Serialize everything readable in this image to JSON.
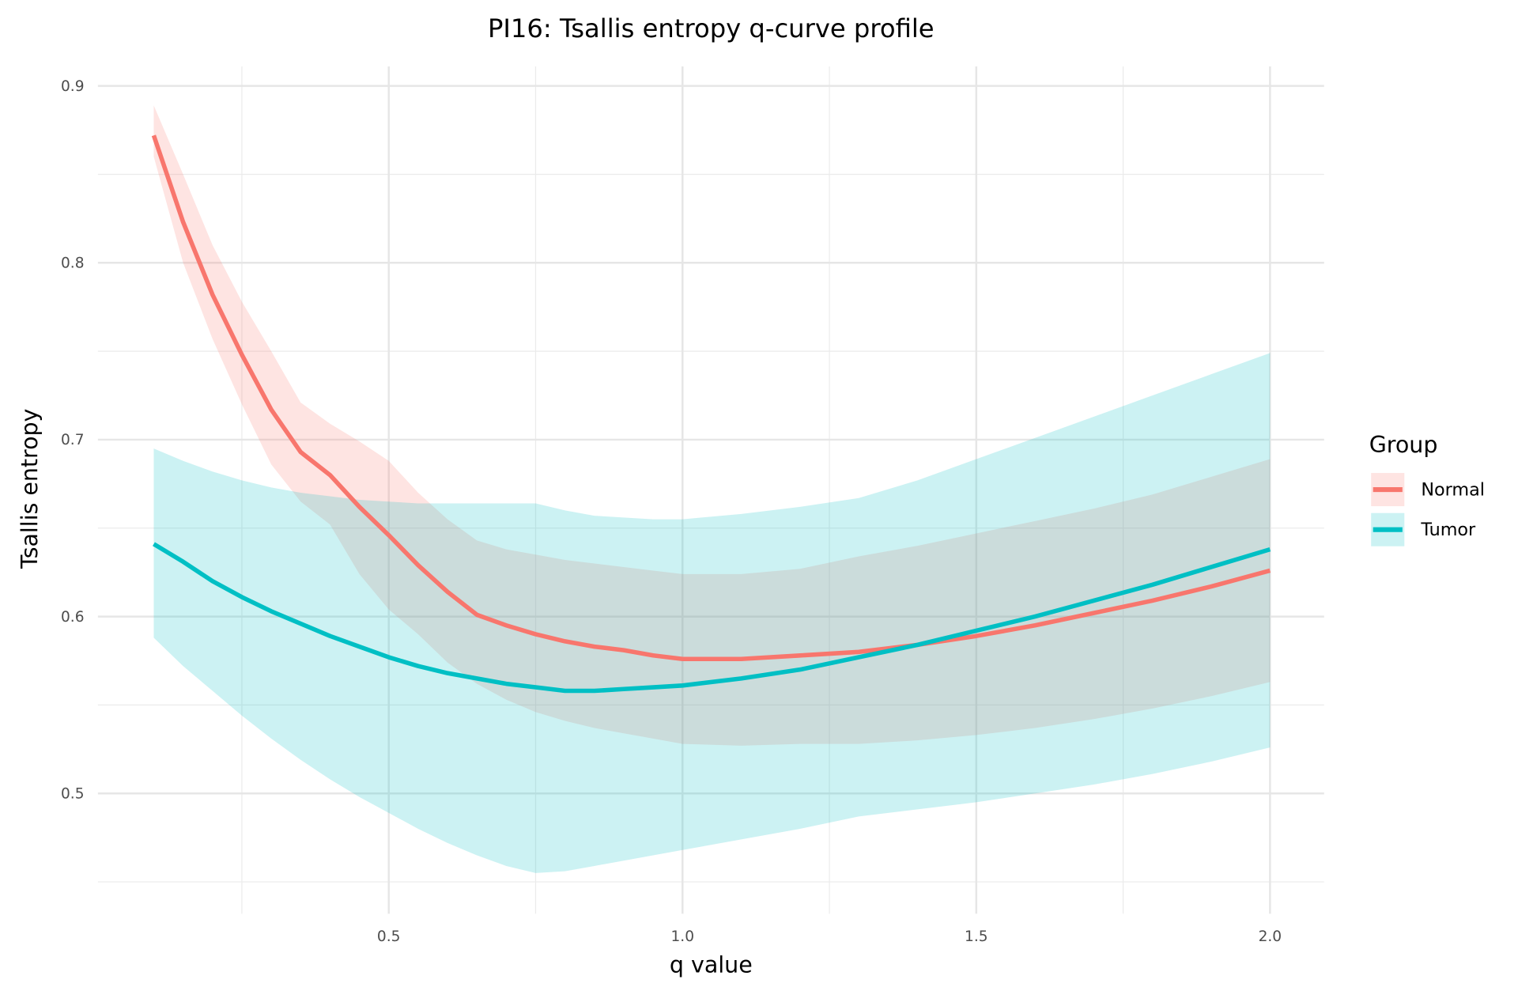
{
  "chart_data": {
    "type": "line",
    "title": "PI16: Tsallis entropy q-curve profile",
    "xlabel": "q value",
    "ylabel": "Tsallis entropy",
    "xlim": [
      0.005,
      2.092
    ],
    "ylim": [
      0.432,
      0.911
    ],
    "xticks": [
      0.5,
      1.0,
      1.5,
      2.0
    ],
    "xtick_labels": [
      "0.5",
      "1.0",
      "1.5",
      "2.0"
    ],
    "yticks": [
      0.5,
      0.6,
      0.7,
      0.8,
      0.9
    ],
    "ytick_labels": [
      "0.5",
      "0.6",
      "0.7",
      "0.8",
      "0.9"
    ],
    "grid": true,
    "legend": {
      "title": "Group",
      "placement": "right"
    },
    "x": [
      0.1,
      0.15,
      0.2,
      0.25,
      0.3,
      0.35,
      0.4,
      0.45,
      0.5,
      0.55,
      0.6,
      0.65,
      0.7,
      0.75,
      0.8,
      0.85,
      0.9,
      0.95,
      1.0,
      1.1,
      1.2,
      1.3,
      1.4,
      1.5,
      1.6,
      1.7,
      1.8,
      1.9,
      2.0
    ],
    "series": [
      {
        "name": "Normal",
        "color": "#F8766D",
        "values": [
          0.872,
          0.823,
          0.782,
          0.748,
          0.717,
          0.693,
          0.68,
          0.662,
          0.646,
          0.629,
          0.614,
          0.601,
          0.595,
          0.59,
          0.586,
          0.583,
          0.581,
          0.578,
          0.576,
          0.576,
          0.578,
          0.58,
          0.584,
          0.589,
          0.595,
          0.602,
          0.609,
          0.617,
          0.626
        ],
        "upper": [
          0.889,
          0.85,
          0.81,
          0.778,
          0.75,
          0.721,
          0.709,
          0.699,
          0.688,
          0.67,
          0.655,
          0.643,
          0.638,
          0.635,
          0.632,
          0.63,
          0.628,
          0.626,
          0.624,
          0.624,
          0.627,
          0.634,
          0.64,
          0.647,
          0.654,
          0.661,
          0.669,
          0.679,
          0.689
        ],
        "lower": [
          0.86,
          0.8,
          0.757,
          0.72,
          0.686,
          0.665,
          0.652,
          0.624,
          0.604,
          0.59,
          0.574,
          0.562,
          0.553,
          0.546,
          0.541,
          0.537,
          0.534,
          0.531,
          0.528,
          0.527,
          0.528,
          0.528,
          0.53,
          0.533,
          0.537,
          0.542,
          0.548,
          0.555,
          0.563
        ]
      },
      {
        "name": "Tumor",
        "color": "#00BFC4",
        "values": [
          0.641,
          0.631,
          0.62,
          0.611,
          0.603,
          0.596,
          0.589,
          0.583,
          0.577,
          0.572,
          0.568,
          0.565,
          0.562,
          0.56,
          0.558,
          0.558,
          0.559,
          0.56,
          0.561,
          0.565,
          0.57,
          0.577,
          0.584,
          0.592,
          0.6,
          0.609,
          0.618,
          0.628,
          0.638
        ],
        "upper": [
          0.695,
          0.688,
          0.682,
          0.677,
          0.673,
          0.67,
          0.668,
          0.666,
          0.665,
          0.664,
          0.664,
          0.664,
          0.664,
          0.664,
          0.66,
          0.657,
          0.656,
          0.655,
          0.655,
          0.658,
          0.662,
          0.667,
          0.677,
          0.689,
          0.701,
          0.713,
          0.725,
          0.737,
          0.749
        ],
        "lower": [
          0.588,
          0.572,
          0.558,
          0.544,
          0.531,
          0.519,
          0.508,
          0.498,
          0.489,
          0.48,
          0.472,
          0.465,
          0.459,
          0.455,
          0.456,
          0.459,
          0.462,
          0.465,
          0.468,
          0.474,
          0.48,
          0.487,
          0.491,
          0.495,
          0.5,
          0.505,
          0.511,
          0.518,
          0.526
        ]
      }
    ]
  }
}
